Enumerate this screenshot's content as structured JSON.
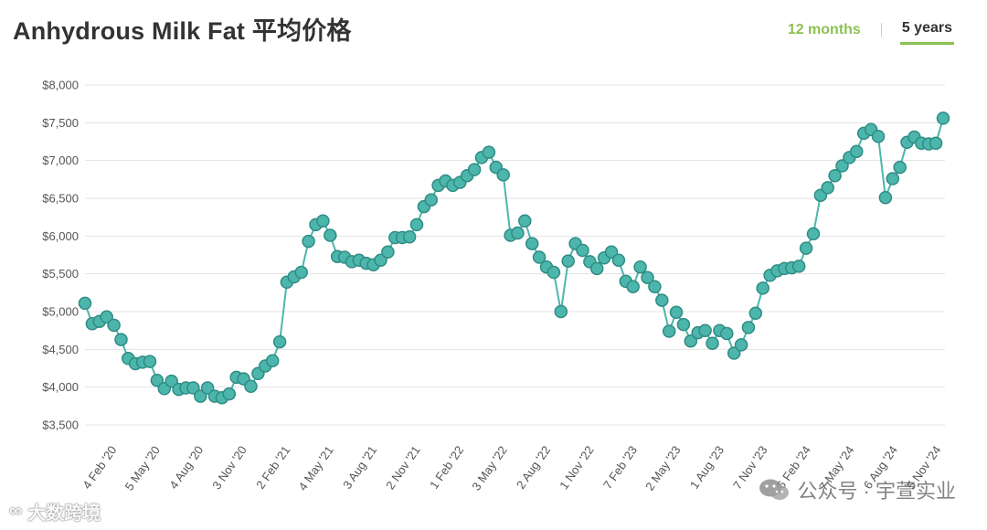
{
  "header": {
    "title": "Anhydrous Milk Fat 平均价格",
    "tabs": [
      {
        "label": "12 months",
        "active": false
      },
      {
        "label": "5 years",
        "active": true
      }
    ]
  },
  "watermarks": {
    "left": "大数跨境",
    "right": "公众号 · 宇萱实业"
  },
  "chart_data": {
    "type": "line",
    "title": "Anhydrous Milk Fat 平均价格",
    "xlabel": "",
    "ylabel": "",
    "ylim": [
      3500,
      8000
    ],
    "yticks": [
      "$3,500",
      "$4,000",
      "$4,500",
      "$5,000",
      "$5,500",
      "$6,000",
      "$6,500",
      "$7,000",
      "$7,500",
      "$8,000"
    ],
    "xticks": [
      "4 Feb '20",
      "5 May '20",
      "4 Aug '20",
      "3 Nov '20",
      "2 Feb '21",
      "4 May '21",
      "3 Aug '21",
      "2 Nov '21",
      "1 Feb '22",
      "3 May '22",
      "2 Aug '22",
      "1 Nov '22",
      "7 Feb '23",
      "2 May '23",
      "1 Aug '23",
      "7 Nov '23",
      "6 Feb '24",
      "7 May '24",
      "6 Aug '24",
      "5 Nov '24"
    ],
    "grid": true,
    "series": [
      {
        "color": "#4db6ac",
        "values": [
          5110,
          4840,
          4870,
          4930,
          4820,
          4630,
          4380,
          4310,
          4330,
          4340,
          4090,
          3980,
          4080,
          3970,
          3990,
          3990,
          3880,
          3990,
          3880,
          3860,
          3910,
          4130,
          4110,
          4010,
          4180,
          4280,
          4350,
          4600,
          5390,
          5460,
          5520,
          5930,
          6150,
          6200,
          6010,
          5730,
          5720,
          5660,
          5680,
          5640,
          5620,
          5680,
          5790,
          5980,
          5980,
          5990,
          6150,
          6390,
          6480,
          6670,
          6730,
          6670,
          6710,
          6800,
          6880,
          7040,
          7110,
          6910,
          6810,
          6010,
          6040,
          6200,
          5900,
          5720,
          5590,
          5520,
          5000,
          5670,
          5900,
          5810,
          5660,
          5570,
          5710,
          5790,
          5680,
          5400,
          5330,
          5590,
          5450,
          5330,
          5150,
          4740,
          4990,
          4830,
          4610,
          4720,
          4750,
          4580,
          4750,
          4710,
          4450,
          4560,
          4790,
          4980,
          5310,
          5480,
          5540,
          5570,
          5580,
          5600,
          5840,
          6030,
          6540,
          6640,
          6800,
          6930,
          7040,
          7120,
          7360,
          7410,
          7320,
          6510,
          6760,
          6910,
          7240,
          7310,
          7230,
          7220,
          7230,
          7560
        ]
      }
    ]
  }
}
